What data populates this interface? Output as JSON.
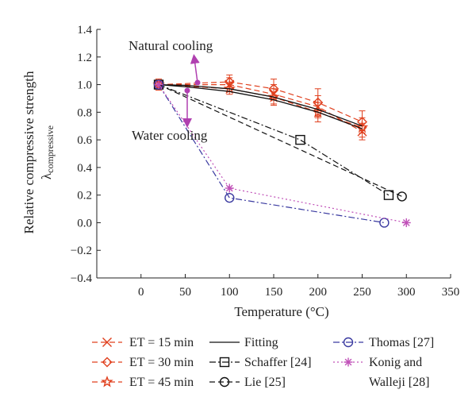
{
  "chart_data": {
    "type": "line",
    "xlabel": "Temperature (°C)",
    "ylabel": "Relative compressive strength",
    "ylabel_symbol": "λ",
    "ylabel_subscript": "compressive",
    "xlim": [
      -50,
      350
    ],
    "ylim": [
      -0.4,
      1.4
    ],
    "xticks": [
      0,
      50,
      100,
      150,
      200,
      250,
      300,
      350
    ],
    "yticks": [
      -0.4,
      -0.2,
      0.0,
      0.2,
      0.4,
      0.6,
      0.8,
      1.0,
      1.2,
      1.4
    ],
    "ytick_labels": [
      "−0.4",
      "−0.2",
      "0.0",
      "0.2",
      "0.4",
      "0.6",
      "0.8",
      "1.0",
      "1.2",
      "1.4"
    ],
    "annotations": [
      {
        "text": "Natural cooling"
      },
      {
        "text": "Water cooling"
      }
    ],
    "colors": {
      "et": "#e0401e",
      "fitting": "#111111",
      "reference": "#111111",
      "thomas": "#3a3aa0",
      "konig": "#c050b8",
      "arrow": "#b040b0"
    },
    "series": [
      {
        "name": "ET = 15 min",
        "marker": "x",
        "style": "dashed",
        "color": "#e0401e",
        "x": [
          20,
          100,
          150,
          200,
          250
        ],
        "y": [
          1.0,
          1.0,
          0.93,
          0.84,
          0.66
        ],
        "err": [
          0.04,
          0.05,
          0.07,
          0.08,
          0.06
        ]
      },
      {
        "name": "ET = 30 min",
        "marker": "diamond",
        "style": "dashed",
        "color": "#e0401e",
        "x": [
          20,
          100,
          150,
          200,
          250
        ],
        "y": [
          1.0,
          1.02,
          0.97,
          0.87,
          0.73
        ],
        "err": [
          0.04,
          0.05,
          0.07,
          0.1,
          0.08
        ]
      },
      {
        "name": "ET = 45 min",
        "marker": "star",
        "style": "dashed",
        "color": "#e0401e",
        "x": [
          20,
          100,
          150,
          200,
          250
        ],
        "y": [
          1.0,
          0.97,
          0.91,
          0.8,
          0.69
        ],
        "err": [
          0.03,
          0.04,
          0.06,
          0.07,
          0.07
        ]
      },
      {
        "name": "Fitting",
        "marker": "none",
        "style": "solid",
        "color": "#111111",
        "x": [
          20,
          50,
          100,
          150,
          200,
          250
        ],
        "y": [
          1.0,
          0.995,
          0.97,
          0.91,
          0.82,
          0.7
        ]
      },
      {
        "name": "Fitting",
        "marker": "none",
        "style": "solid",
        "color": "#111111",
        "x": [
          20,
          50,
          100,
          150,
          200,
          250
        ],
        "y": [
          1.0,
          0.985,
          0.95,
          0.89,
          0.8,
          0.68
        ]
      },
      {
        "name": "Schaffer [24]",
        "marker": "square",
        "style": "dashdot",
        "color": "#111111",
        "x": [
          20,
          180,
          280
        ],
        "y": [
          1.0,
          0.6,
          0.2
        ]
      },
      {
        "name": "Lie [25]",
        "marker": "circle",
        "style": "dashed",
        "color": "#111111",
        "x": [
          20,
          295
        ],
        "y": [
          1.0,
          0.19
        ]
      },
      {
        "name": "Thomas [27]",
        "marker": "circle",
        "style": "dashdot",
        "color": "#3a3aa0",
        "x": [
          20,
          100,
          275
        ],
        "y": [
          1.0,
          0.18,
          0.0
        ]
      },
      {
        "name": "Konig and Walleji [28]",
        "marker": "asterisk",
        "style": "dotted",
        "color": "#c050b8",
        "x": [
          20,
          100,
          300
        ],
        "y": [
          1.0,
          0.25,
          0.0
        ]
      }
    ]
  },
  "legend": {
    "col1": [
      "ET = 15 min",
      "ET = 30 min",
      "ET = 45 min"
    ],
    "col2": [
      "Fitting",
      "Schaffer [24]",
      "Lie [25]"
    ],
    "col3_line1": "Thomas [27]",
    "col3_line2a": "Konig and",
    "col3_line2b": "Walleji [28]"
  }
}
